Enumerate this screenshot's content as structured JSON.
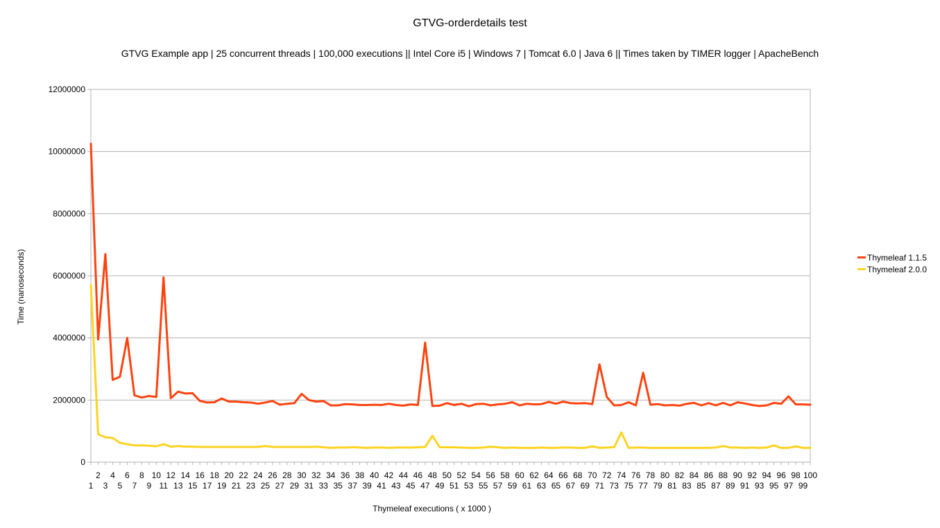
{
  "chart_data": {
    "type": "line",
    "title": "GTVG-orderdetails test",
    "subtitle": "GTVG Example app | 25 concurrent threads | 100,000 executions || Intel Core i5 | Windows 7 | Tomcat 6.0 | Java 6 || Times taken by TIMER logger | ApacheBench",
    "xlabel": "Thymeleaf executions  ( x 1000 )",
    "ylabel": "Time (nanoseconds)",
    "x": [
      1,
      2,
      3,
      4,
      5,
      6,
      7,
      8,
      9,
      10,
      11,
      12,
      13,
      14,
      15,
      16,
      17,
      18,
      19,
      20,
      21,
      22,
      23,
      24,
      25,
      26,
      27,
      28,
      29,
      30,
      31,
      32,
      33,
      34,
      35,
      36,
      37,
      38,
      39,
      40,
      41,
      42,
      43,
      44,
      45,
      46,
      47,
      48,
      49,
      50,
      51,
      52,
      53,
      54,
      55,
      56,
      57,
      58,
      59,
      60,
      61,
      62,
      63,
      64,
      65,
      66,
      67,
      68,
      69,
      70,
      71,
      72,
      73,
      74,
      75,
      76,
      77,
      78,
      79,
      80,
      81,
      82,
      83,
      84,
      85,
      86,
      87,
      88,
      89,
      90,
      91,
      92,
      93,
      94,
      95,
      96,
      97,
      98,
      99,
      100
    ],
    "ylim": [
      0,
      12000000
    ],
    "yticks": [
      0,
      2000000,
      4000000,
      6000000,
      8000000,
      10000000,
      12000000
    ],
    "grid": true,
    "legend_position": "right",
    "series": [
      {
        "name": "Thymeleaf 1.1.5",
        "color": "#ff420e",
        "values": [
          10250000,
          3950000,
          6700000,
          2650000,
          2750000,
          4000000,
          2150000,
          2080000,
          2130000,
          2100000,
          5950000,
          2060000,
          2270000,
          2210000,
          2220000,
          1970000,
          1920000,
          1930000,
          2050000,
          1950000,
          1950000,
          1930000,
          1920000,
          1880000,
          1920000,
          1970000,
          1850000,
          1880000,
          1900000,
          2200000,
          2000000,
          1950000,
          1970000,
          1830000,
          1830000,
          1870000,
          1860000,
          1840000,
          1840000,
          1850000,
          1840000,
          1880000,
          1840000,
          1820000,
          1860000,
          1840000,
          3850000,
          1810000,
          1820000,
          1900000,
          1840000,
          1880000,
          1800000,
          1870000,
          1880000,
          1830000,
          1860000,
          1880000,
          1930000,
          1830000,
          1880000,
          1860000,
          1870000,
          1940000,
          1880000,
          1950000,
          1900000,
          1890000,
          1900000,
          1870000,
          3150000,
          2100000,
          1830000,
          1840000,
          1930000,
          1830000,
          2880000,
          1850000,
          1870000,
          1830000,
          1840000,
          1820000,
          1880000,
          1910000,
          1830000,
          1900000,
          1830000,
          1910000,
          1830000,
          1930000,
          1890000,
          1840000,
          1810000,
          1830000,
          1910000,
          1880000,
          2120000,
          1860000,
          1860000,
          1850000
        ]
      },
      {
        "name": "Thymeleaf 2.0.0",
        "color": "#ffd320",
        "values": [
          5700000,
          900000,
          800000,
          780000,
          620000,
          580000,
          540000,
          540000,
          530000,
          510000,
          580000,
          500000,
          520000,
          500000,
          500000,
          490000,
          490000,
          490000,
          490000,
          490000,
          490000,
          490000,
          490000,
          490000,
          520000,
          490000,
          490000,
          490000,
          490000,
          490000,
          490000,
          500000,
          480000,
          460000,
          470000,
          470000,
          480000,
          470000,
          460000,
          470000,
          470000,
          460000,
          470000,
          470000,
          470000,
          480000,
          490000,
          850000,
          480000,
          480000,
          480000,
          470000,
          460000,
          460000,
          470000,
          500000,
          480000,
          460000,
          470000,
          460000,
          460000,
          460000,
          470000,
          460000,
          460000,
          470000,
          470000,
          460000,
          460000,
          510000,
          460000,
          470000,
          480000,
          960000,
          460000,
          470000,
          470000,
          460000,
          460000,
          460000,
          460000,
          460000,
          460000,
          460000,
          460000,
          460000,
          470000,
          520000,
          470000,
          470000,
          460000,
          470000,
          460000,
          470000,
          540000,
          460000,
          460000,
          510000,
          460000,
          460000
        ]
      }
    ]
  }
}
